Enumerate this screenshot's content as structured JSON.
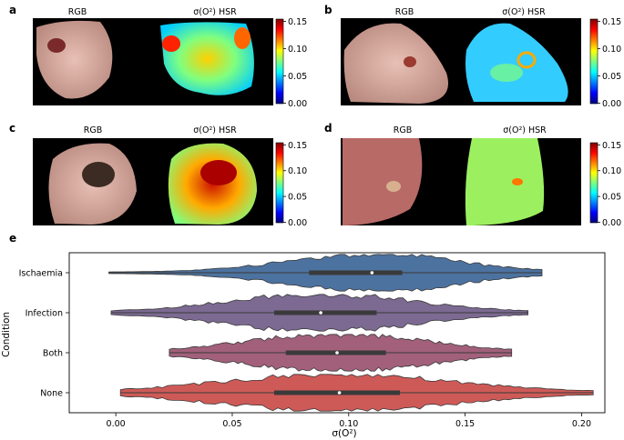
{
  "figure": {
    "panel_labels": [
      "a",
      "b",
      "c",
      "d",
      "e"
    ],
    "image_title_rgb": "RGB",
    "image_title_hsr": "σ(O²) HSR",
    "colorbar_ticks": [
      "0.00",
      "0.05",
      "0.10",
      "0.15"
    ],
    "colormap": [
      "#00007f",
      "#0000ff",
      "#007fff",
      "#00ffff",
      "#7fff7f",
      "#ffff00",
      "#ff7f00",
      "#ff0000",
      "#7f0000"
    ]
  },
  "chart_data": {
    "type": "violin",
    "orientation": "horizontal",
    "title": "",
    "xlabel": "σ(O²)",
    "ylabel": "Condition",
    "xlim": [
      -0.02,
      0.21
    ],
    "xticks": [
      "0.00",
      "0.05",
      "0.10",
      "0.15",
      "0.20"
    ],
    "xtick_values": [
      0.0,
      0.05,
      0.1,
      0.15,
      0.2
    ],
    "grid": false,
    "categories": [
      "Ischaemia",
      "Infection",
      "Both",
      "None"
    ],
    "colors": [
      "#4c72a0",
      "#7c6a92",
      "#a2607b",
      "#ce5a57"
    ],
    "series": [
      {
        "category": "Ischaemia",
        "min": -0.003,
        "q1": 0.083,
        "median": 0.11,
        "q3": 0.123,
        "max": 0.183
      },
      {
        "category": "Infection",
        "min": -0.002,
        "q1": 0.068,
        "median": 0.088,
        "q3": 0.112,
        "max": 0.177
      },
      {
        "category": "Both",
        "min": 0.023,
        "q1": 0.073,
        "median": 0.095,
        "q3": 0.116,
        "max": 0.17
      },
      {
        "category": "None",
        "min": 0.002,
        "q1": 0.068,
        "median": 0.096,
        "q3": 0.122,
        "max": 0.205
      }
    ]
  }
}
